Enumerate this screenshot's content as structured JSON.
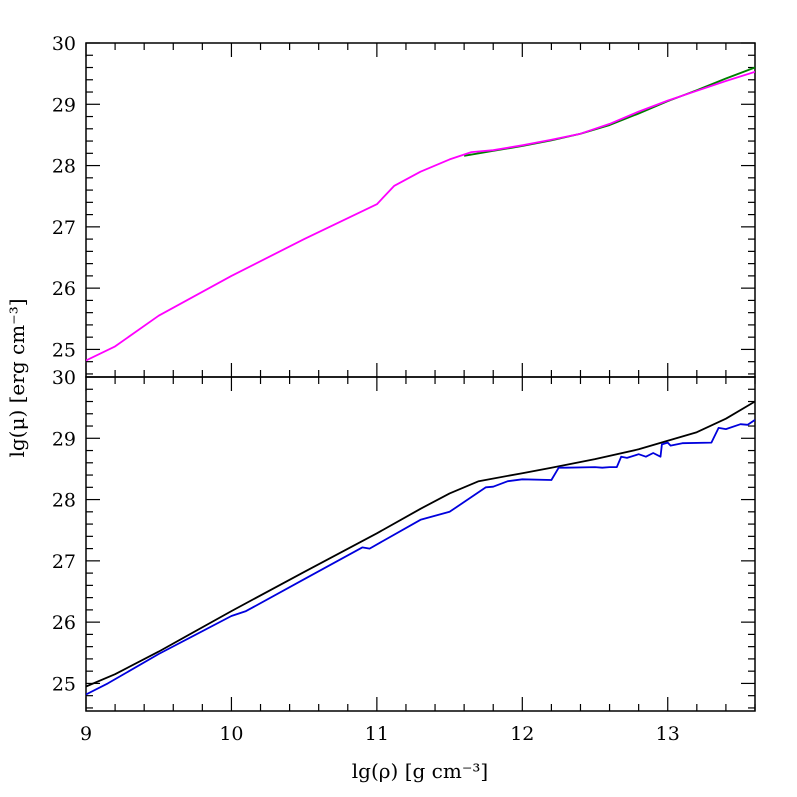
{
  "chart_data": [
    {
      "type": "line",
      "panel": "top",
      "xlim": [
        9,
        13.6
      ],
      "ylim": [
        24.55,
        30
      ],
      "x_ticks": [
        9,
        10,
        11,
        12,
        13
      ],
      "y_ticks": [
        25,
        26,
        27,
        28,
        29,
        30
      ],
      "y_tick_labels": [
        "25",
        "26",
        "27",
        "28",
        "29",
        "30"
      ],
      "series": [
        {
          "color": "#008000",
          "x": [
            11.6,
            11.8,
            12.0,
            12.2,
            12.4,
            12.6,
            12.8,
            13.0,
            13.2,
            13.4,
            13.6
          ],
          "y": [
            28.16,
            28.24,
            28.32,
            28.41,
            28.52,
            28.66,
            28.85,
            29.05,
            29.23,
            29.42,
            29.6
          ]
        },
        {
          "color": "#ff00ff",
          "x": [
            9.0,
            9.2,
            9.5,
            10.0,
            10.5,
            11.0,
            11.12,
            11.3,
            11.5,
            11.65,
            11.8,
            12.0,
            12.2,
            12.4,
            12.6,
            12.8,
            13.0,
            13.2,
            13.4,
            13.6
          ],
          "y": [
            24.82,
            25.05,
            25.55,
            26.2,
            26.8,
            27.37,
            27.67,
            27.9,
            28.1,
            28.22,
            28.25,
            28.33,
            28.42,
            28.52,
            28.68,
            28.88,
            29.06,
            29.22,
            29.38,
            29.53
          ]
        }
      ]
    },
    {
      "type": "line",
      "panel": "bottom",
      "xlim": [
        9,
        13.6
      ],
      "ylim": [
        24.55,
        30
      ],
      "x_ticks": [
        9,
        10,
        11,
        12,
        13
      ],
      "x_tick_labels": [
        "9",
        "10",
        "11",
        "12",
        "13"
      ],
      "y_ticks": [
        25,
        26,
        27,
        28,
        29,
        30
      ],
      "y_tick_labels": [
        "25",
        "26",
        "27",
        "28",
        "29",
        "30"
      ],
      "series": [
        {
          "color": "#000000",
          "x": [
            9.0,
            9.2,
            9.5,
            10.0,
            10.5,
            11.0,
            11.3,
            11.5,
            11.7,
            12.0,
            12.2,
            12.5,
            12.8,
            13.0,
            13.2,
            13.4,
            13.6
          ],
          "y": [
            24.95,
            25.15,
            25.52,
            26.18,
            26.82,
            27.45,
            27.85,
            28.1,
            28.3,
            28.43,
            28.52,
            28.66,
            28.82,
            28.96,
            29.1,
            29.32,
            29.6
          ]
        },
        {
          "color": "#0000dd",
          "x": [
            9.0,
            9.15,
            9.5,
            10.0,
            10.1,
            10.5,
            10.9,
            10.95,
            11.3,
            11.5,
            11.75,
            11.8,
            11.9,
            12.0,
            12.2,
            12.25,
            12.3,
            12.5,
            12.55,
            12.6,
            12.65,
            12.68,
            12.72,
            12.8,
            12.85,
            12.9,
            12.95,
            12.96,
            13.0,
            13.02,
            13.1,
            13.3,
            13.35,
            13.4,
            13.5,
            13.55,
            13.6
          ],
          "y": [
            24.82,
            25.0,
            25.48,
            26.1,
            26.18,
            26.7,
            27.22,
            27.2,
            27.67,
            27.8,
            28.2,
            28.21,
            28.3,
            28.33,
            28.32,
            28.52,
            28.52,
            28.53,
            28.52,
            28.53,
            28.53,
            28.7,
            28.68,
            28.74,
            28.7,
            28.76,
            28.7,
            28.9,
            28.93,
            28.88,
            28.92,
            28.93,
            29.17,
            29.15,
            29.23,
            29.22,
            29.3
          ]
        }
      ]
    }
  ],
  "labels": {
    "xlabel": "lg(ρ) [g cm⁻³]",
    "ylabel": "lg(μ) [erg cm⁻³]"
  }
}
